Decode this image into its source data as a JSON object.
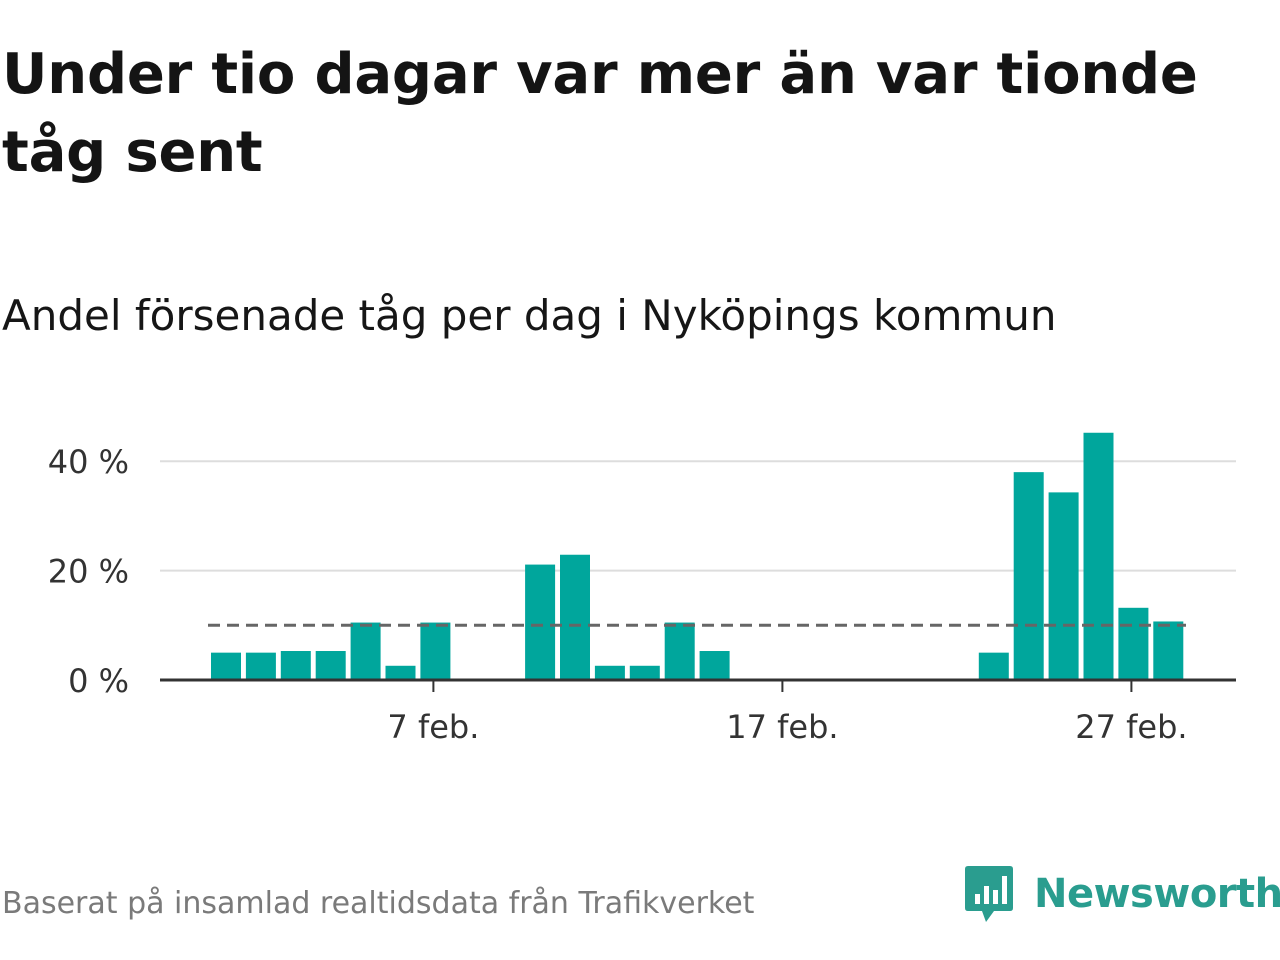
{
  "title": "Under tio dagar var mer än var tionde tåg sent",
  "subtitle": "Andel försenade tåg per dag i Nyköpings kommun",
  "source": "Baserat på insamlad realtidsdata från Trafikverket",
  "brand": {
    "name": "Newsworthy",
    "color": "#2a9d8f"
  },
  "colors": {
    "bar": "#00a69c",
    "reference_line": "#666666",
    "grid": "#dddddd",
    "axis": "#333333"
  },
  "chart_data": {
    "type": "bar",
    "x_unit": "day",
    "x_start": "2025-02-01",
    "x": [
      "2025-02-01",
      "2025-02-02",
      "2025-02-03",
      "2025-02-04",
      "2025-02-05",
      "2025-02-06",
      "2025-02-07",
      "2025-02-08",
      "2025-02-09",
      "2025-02-10",
      "2025-02-11",
      "2025-02-12",
      "2025-02-13",
      "2025-02-14",
      "2025-02-15",
      "2025-02-16",
      "2025-02-17",
      "2025-02-18",
      "2025-02-19",
      "2025-02-20",
      "2025-02-21",
      "2025-02-22",
      "2025-02-23",
      "2025-02-24",
      "2025-02-25",
      "2025-02-26",
      "2025-02-27",
      "2025-02-28"
    ],
    "values": [
      5.0,
      5.0,
      5.3,
      5.3,
      10.5,
      2.6,
      10.5,
      0,
      0,
      21.1,
      22.9,
      2.6,
      2.6,
      10.5,
      5.3,
      0,
      0,
      0,
      0,
      0,
      0,
      0,
      5.0,
      38.0,
      34.3,
      45.2,
      13.2,
      10.7
    ],
    "reference_line": 10,
    "ylim": [
      0,
      50
    ],
    "y_ticks": [
      0,
      20,
      40
    ],
    "y_tick_labels": [
      "0 %",
      "20 %",
      "40 %"
    ],
    "x_ticks": [
      "2025-02-07",
      "2025-02-17",
      "2025-02-27"
    ],
    "x_tick_labels": [
      "7 feb.",
      "17 feb.",
      "27 feb."
    ],
    "grid": true,
    "legend": false
  }
}
